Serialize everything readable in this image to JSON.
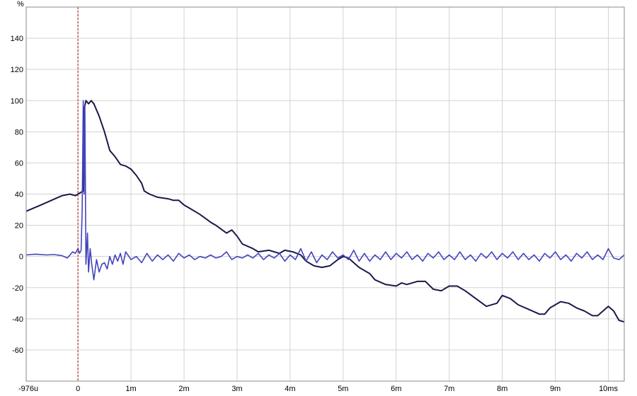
{
  "chart_data": {
    "type": "line",
    "ylabel": "%",
    "xlim": [
      -0.976,
      10.3
    ],
    "ylim": [
      -80,
      160
    ],
    "x_ticks": [
      {
        "value": -0.976,
        "label": "-976u"
      },
      {
        "value": 0,
        "label": "0"
      },
      {
        "value": 1,
        "label": "1m"
      },
      {
        "value": 2,
        "label": "2m"
      },
      {
        "value": 3,
        "label": "3m"
      },
      {
        "value": 4,
        "label": "4m"
      },
      {
        "value": 5,
        "label": "5m"
      },
      {
        "value": 6,
        "label": "6m"
      },
      {
        "value": 7,
        "label": "7m"
      },
      {
        "value": 8,
        "label": "8m"
      },
      {
        "value": 9,
        "label": "9m"
      },
      {
        "value": 10,
        "label": "10ms"
      }
    ],
    "y_ticks": [
      {
        "value": 140,
        "label": "140"
      },
      {
        "value": 120,
        "label": "120"
      },
      {
        "value": 100,
        "label": "100"
      },
      {
        "value": 80,
        "label": "80"
      },
      {
        "value": 60,
        "label": "60"
      },
      {
        "value": 40,
        "label": "40"
      },
      {
        "value": 20,
        "label": "20"
      },
      {
        "value": 0,
        "label": "0"
      },
      {
        "value": -20,
        "label": "-20"
      },
      {
        "value": -40,
        "label": "-40"
      },
      {
        "value": -60,
        "label": "-60"
      }
    ],
    "grid": true,
    "marker_x": 0,
    "series": [
      {
        "color": "#1a1a4a",
        "points": [
          [
            -0.976,
            29
          ],
          [
            -0.7,
            33
          ],
          [
            -0.5,
            36
          ],
          [
            -0.3,
            39
          ],
          [
            -0.15,
            40
          ],
          [
            -0.05,
            39
          ],
          [
            0.05,
            41
          ],
          [
            0.1,
            42
          ],
          [
            0.12,
            95
          ],
          [
            0.15,
            100
          ],
          [
            0.2,
            98
          ],
          [
            0.25,
            100
          ],
          [
            0.3,
            98
          ],
          [
            0.4,
            90
          ],
          [
            0.5,
            80
          ],
          [
            0.6,
            68
          ],
          [
            0.7,
            64
          ],
          [
            0.8,
            59
          ],
          [
            0.9,
            58
          ],
          [
            1.0,
            56
          ],
          [
            1.1,
            52
          ],
          [
            1.2,
            47
          ],
          [
            1.25,
            42
          ],
          [
            1.35,
            40
          ],
          [
            1.5,
            38
          ],
          [
            1.7,
            37
          ],
          [
            1.8,
            36
          ],
          [
            1.9,
            36
          ],
          [
            2.0,
            33
          ],
          [
            2.1,
            31
          ],
          [
            2.3,
            27
          ],
          [
            2.5,
            22
          ],
          [
            2.6,
            20
          ],
          [
            2.8,
            15
          ],
          [
            2.9,
            17
          ],
          [
            3.0,
            13
          ],
          [
            3.1,
            8
          ],
          [
            3.3,
            5
          ],
          [
            3.4,
            3
          ],
          [
            3.6,
            4
          ],
          [
            3.8,
            2
          ],
          [
            3.9,
            4
          ],
          [
            4.05,
            3
          ],
          [
            4.2,
            1
          ],
          [
            4.3,
            -3
          ],
          [
            4.45,
            -6
          ],
          [
            4.6,
            -7
          ],
          [
            4.75,
            -6
          ],
          [
            4.9,
            -2
          ],
          [
            5.0,
            0
          ],
          [
            5.1,
            -1
          ],
          [
            5.3,
            -7
          ],
          [
            5.5,
            -11
          ],
          [
            5.6,
            -15
          ],
          [
            5.8,
            -18
          ],
          [
            6.0,
            -19
          ],
          [
            6.1,
            -17
          ],
          [
            6.2,
            -18
          ],
          [
            6.4,
            -16
          ],
          [
            6.55,
            -16
          ],
          [
            6.7,
            -21
          ],
          [
            6.85,
            -22
          ],
          [
            7.0,
            -19
          ],
          [
            7.15,
            -19
          ],
          [
            7.3,
            -22
          ],
          [
            7.5,
            -27
          ],
          [
            7.7,
            -32
          ],
          [
            7.9,
            -30
          ],
          [
            8.0,
            -25
          ],
          [
            8.15,
            -27
          ],
          [
            8.3,
            -31
          ],
          [
            8.5,
            -34
          ],
          [
            8.7,
            -37
          ],
          [
            8.8,
            -37
          ],
          [
            8.9,
            -33
          ],
          [
            9.0,
            -31
          ],
          [
            9.1,
            -29
          ],
          [
            9.25,
            -30
          ],
          [
            9.4,
            -33
          ],
          [
            9.55,
            -35
          ],
          [
            9.7,
            -38
          ],
          [
            9.8,
            -38
          ],
          [
            9.9,
            -35
          ],
          [
            10.0,
            -32
          ],
          [
            10.1,
            -35
          ],
          [
            10.2,
            -41
          ],
          [
            10.3,
            -42
          ]
        ]
      },
      {
        "color": "#4444bb",
        "points": [
          [
            -0.976,
            1
          ],
          [
            -0.8,
            1.5
          ],
          [
            -0.6,
            1
          ],
          [
            -0.45,
            1.2
          ],
          [
            -0.3,
            0.5
          ],
          [
            -0.2,
            -1
          ],
          [
            -0.1,
            3
          ],
          [
            -0.05,
            2
          ],
          [
            0.0,
            5
          ],
          [
            0.03,
            2
          ],
          [
            0.06,
            4
          ],
          [
            0.08,
            30
          ],
          [
            0.1,
            100
          ],
          [
            0.115,
            40
          ],
          [
            0.13,
            97
          ],
          [
            0.15,
            -5
          ],
          [
            0.18,
            15
          ],
          [
            0.2,
            -10
          ],
          [
            0.23,
            5
          ],
          [
            0.26,
            -5
          ],
          [
            0.3,
            -15
          ],
          [
            0.35,
            -2
          ],
          [
            0.4,
            -10
          ],
          [
            0.45,
            -5
          ],
          [
            0.5,
            -4
          ],
          [
            0.55,
            -8
          ],
          [
            0.6,
            0
          ],
          [
            0.65,
            -5
          ],
          [
            0.7,
            1
          ],
          [
            0.75,
            -3
          ],
          [
            0.8,
            2
          ],
          [
            0.85,
            -5
          ],
          [
            0.9,
            3
          ],
          [
            1.0,
            -2
          ],
          [
            1.1,
            0
          ],
          [
            1.2,
            -4
          ],
          [
            1.3,
            2
          ],
          [
            1.4,
            -3
          ],
          [
            1.5,
            1
          ],
          [
            1.6,
            -2
          ],
          [
            1.7,
            1
          ],
          [
            1.8,
            -3
          ],
          [
            1.9,
            2
          ],
          [
            2.0,
            -1
          ],
          [
            2.1,
            1
          ],
          [
            2.2,
            -2
          ],
          [
            2.3,
            0
          ],
          [
            2.4,
            -1
          ],
          [
            2.5,
            1
          ],
          [
            2.6,
            -1
          ],
          [
            2.7,
            0
          ],
          [
            2.8,
            3
          ],
          [
            2.9,
            -2
          ],
          [
            3.0,
            0
          ],
          [
            3.1,
            -1
          ],
          [
            3.2,
            1
          ],
          [
            3.3,
            -1
          ],
          [
            3.4,
            2
          ],
          [
            3.5,
            -2
          ],
          [
            3.6,
            1
          ],
          [
            3.7,
            -1
          ],
          [
            3.8,
            2
          ],
          [
            3.9,
            -3
          ],
          [
            4.0,
            1
          ],
          [
            4.1,
            -2
          ],
          [
            4.2,
            5
          ],
          [
            4.3,
            -3
          ],
          [
            4.4,
            3
          ],
          [
            4.5,
            -4
          ],
          [
            4.6,
            1
          ],
          [
            4.7,
            -2
          ],
          [
            4.8,
            3
          ],
          [
            4.9,
            -1
          ],
          [
            5.0,
            1
          ],
          [
            5.1,
            -2
          ],
          [
            5.2,
            4
          ],
          [
            5.3,
            -3
          ],
          [
            5.4,
            2
          ],
          [
            5.5,
            -3
          ],
          [
            5.6,
            1
          ],
          [
            5.7,
            -2
          ],
          [
            5.8,
            3
          ],
          [
            5.9,
            -2
          ],
          [
            6.0,
            2
          ],
          [
            6.1,
            -1
          ],
          [
            6.2,
            3
          ],
          [
            6.3,
            -2
          ],
          [
            6.4,
            1
          ],
          [
            6.5,
            -3
          ],
          [
            6.6,
            2
          ],
          [
            6.7,
            -1
          ],
          [
            6.8,
            3
          ],
          [
            6.9,
            -2
          ],
          [
            7.0,
            1
          ],
          [
            7.1,
            -2
          ],
          [
            7.2,
            3
          ],
          [
            7.3,
            -2
          ],
          [
            7.4,
            1
          ],
          [
            7.5,
            -3
          ],
          [
            7.6,
            2
          ],
          [
            7.7,
            -1
          ],
          [
            7.8,
            3
          ],
          [
            7.9,
            -2
          ],
          [
            8.0,
            2
          ],
          [
            8.1,
            -1
          ],
          [
            8.2,
            3
          ],
          [
            8.3,
            -2
          ],
          [
            8.4,
            2
          ],
          [
            8.5,
            -2
          ],
          [
            8.6,
            1
          ],
          [
            8.7,
            -3
          ],
          [
            8.8,
            2
          ],
          [
            8.9,
            -1
          ],
          [
            9.0,
            3
          ],
          [
            9.1,
            -2
          ],
          [
            9.2,
            1
          ],
          [
            9.3,
            -3
          ],
          [
            9.4,
            2
          ],
          [
            9.5,
            -1
          ],
          [
            9.6,
            3
          ],
          [
            9.7,
            -2
          ],
          [
            9.8,
            1
          ],
          [
            9.9,
            -2
          ],
          [
            10.0,
            5
          ],
          [
            10.1,
            -1
          ],
          [
            10.2,
            -2
          ],
          [
            10.3,
            1
          ]
        ]
      }
    ]
  }
}
